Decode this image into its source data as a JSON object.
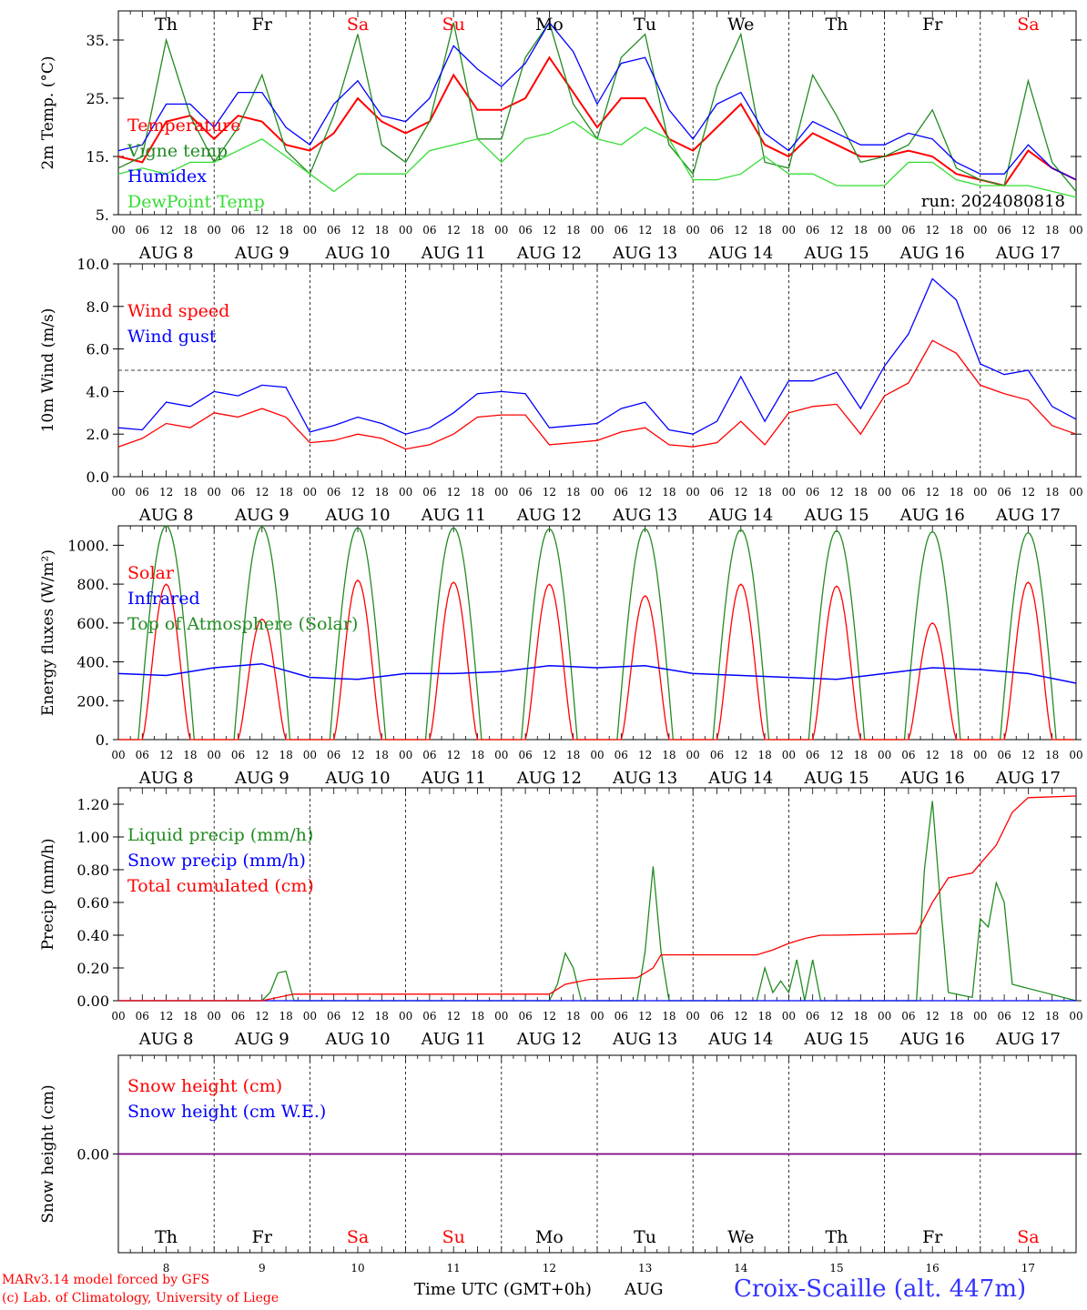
{
  "colors": {
    "red": "#ff0000",
    "green": "#228b22",
    "blue": "#0000ff",
    "light_green": "#33dd33",
    "purple": "#800080",
    "black": "#000000"
  },
  "day_labels": [
    "Th",
    "Fr",
    "Sa",
    "Su",
    "Mo",
    "Tu",
    "We",
    "Th",
    "Fr",
    "Sa"
  ],
  "weekend_days": [
    2,
    3,
    9
  ],
  "date_labels": [
    "AUG  8",
    "AUG  9",
    "AUG 10",
    "AUG 11",
    "AUG 12",
    "AUG 13",
    "AUG 14",
    "AUG 15",
    "AUG 16",
    "AUG 17"
  ],
  "hour_labels": [
    "00",
    "06",
    "12",
    "18"
  ],
  "bottom_day_numbers": [
    "8",
    "9",
    "10",
    "11",
    "12",
    "13",
    "14",
    "15",
    "16",
    "17"
  ],
  "axis_title": "Time UTC (GMT+0h)",
  "axis_month": "AUG",
  "run_label": "run: 2024080818",
  "footer": {
    "model": "MARv3.14 model forced by GFS",
    "copyright": "(c) Lab. of Climatology, University of Liege",
    "station": "Croix-Scaille (alt. 447m)"
  },
  "chart_data": [
    {
      "type": "line",
      "ylabel": "2m Temp. (°C)",
      "ylim": [
        5,
        40
      ],
      "yticks": [
        "5.",
        "15.",
        "25.",
        "35."
      ],
      "x_unit": "hours since AUG 8 00 UTC",
      "xlim": [
        0,
        240
      ],
      "series": [
        {
          "name": "Temperature",
          "color": "#ff0000",
          "x": [
            0,
            6,
            12,
            18,
            24,
            30,
            36,
            42,
            48,
            54,
            60,
            66,
            72,
            78,
            84,
            90,
            96,
            102,
            108,
            114,
            120,
            126,
            132,
            138,
            144,
            150,
            156,
            162,
            168,
            174,
            180,
            186,
            192,
            198,
            204,
            210,
            216,
            222,
            228,
            234,
            240
          ],
          "y": [
            15,
            14,
            21,
            22,
            18,
            22,
            21,
            17,
            16,
            19,
            25,
            21,
            19,
            21,
            29,
            23,
            23,
            25,
            32,
            26,
            20,
            25,
            25,
            18,
            16,
            20,
            24,
            17,
            15,
            19,
            17,
            15,
            15,
            16,
            15,
            12,
            11,
            10,
            16,
            13,
            11
          ]
        },
        {
          "name": "Vigne temp",
          "color": "#228b22",
          "x": [
            0,
            6,
            12,
            18,
            24,
            30,
            36,
            42,
            48,
            54,
            60,
            66,
            72,
            78,
            84,
            90,
            96,
            102,
            108,
            114,
            120,
            126,
            132,
            138,
            144,
            150,
            156,
            162,
            168,
            174,
            180,
            186,
            192,
            198,
            204,
            210,
            216,
            222,
            228,
            234,
            240
          ],
          "y": [
            13,
            15,
            35,
            22,
            14,
            20,
            29,
            16,
            12,
            22,
            36,
            17,
            14,
            21,
            38,
            18,
            18,
            32,
            38,
            24,
            18,
            32,
            36,
            17,
            12,
            27,
            36,
            14,
            13,
            29,
            22,
            14,
            15,
            17,
            23,
            13,
            11,
            10,
            28,
            14,
            9
          ]
        },
        {
          "name": "Humidex",
          "color": "#0000ff",
          "x": [
            0,
            6,
            12,
            18,
            24,
            30,
            36,
            42,
            48,
            54,
            60,
            66,
            72,
            78,
            84,
            90,
            96,
            102,
            108,
            114,
            120,
            126,
            132,
            138,
            144,
            150,
            156,
            162,
            168,
            174,
            180,
            186,
            192,
            198,
            204,
            210,
            216,
            222,
            228,
            234,
            240
          ],
          "y": [
            16,
            17,
            24,
            24,
            20,
            26,
            26,
            20,
            17,
            24,
            28,
            22,
            21,
            25,
            34,
            30,
            27,
            31,
            38,
            33,
            24,
            31,
            32,
            23,
            18,
            24,
            26,
            19,
            16,
            21,
            19,
            17,
            17,
            19,
            18,
            14,
            12,
            12,
            17,
            13,
            11
          ]
        },
        {
          "name": "DewPoint Temp",
          "color": "#33dd33",
          "x": [
            0,
            6,
            12,
            18,
            24,
            30,
            36,
            42,
            48,
            54,
            60,
            66,
            72,
            78,
            84,
            90,
            96,
            102,
            108,
            114,
            120,
            126,
            132,
            138,
            144,
            150,
            156,
            162,
            168,
            174,
            180,
            186,
            192,
            198,
            204,
            210,
            216,
            222,
            228,
            234,
            240
          ],
          "y": [
            12,
            13,
            12,
            14,
            14,
            16,
            18,
            15,
            12,
            9,
            12,
            12,
            12,
            16,
            17,
            18,
            14,
            18,
            19,
            21,
            18,
            17,
            20,
            18,
            11,
            11,
            12,
            15,
            12,
            12,
            10,
            10,
            10,
            14,
            14,
            11,
            10,
            10,
            10,
            9,
            8
          ]
        }
      ]
    },
    {
      "type": "line",
      "ylabel": "10m Wind (m/s)",
      "ylim": [
        0,
        10
      ],
      "yticks": [
        "0.0",
        "2.0",
        "4.0",
        "6.0",
        "8.0",
        "10.0"
      ],
      "reference_line": 5,
      "xlim": [
        0,
        240
      ],
      "series": [
        {
          "name": "Wind speed",
          "color": "#ff0000",
          "x": [
            0,
            6,
            12,
            18,
            24,
            30,
            36,
            42,
            48,
            54,
            60,
            66,
            72,
            78,
            84,
            90,
            96,
            102,
            108,
            114,
            120,
            126,
            132,
            138,
            144,
            150,
            156,
            162,
            168,
            174,
            180,
            186,
            192,
            198,
            204,
            210,
            216,
            222,
            228,
            234,
            240
          ],
          "y": [
            1.4,
            1.8,
            2.5,
            2.3,
            3.0,
            2.8,
            3.2,
            2.8,
            1.6,
            1.7,
            2.0,
            1.8,
            1.3,
            1.5,
            2.0,
            2.8,
            2.9,
            2.9,
            1.5,
            1.6,
            1.7,
            2.1,
            2.3,
            1.5,
            1.4,
            1.6,
            2.6,
            1.5,
            3.0,
            3.3,
            3.4,
            2.0,
            3.8,
            4.4,
            6.4,
            5.8,
            4.3,
            3.9,
            3.6,
            2.4,
            2.0
          ]
        },
        {
          "name": "Wind gust",
          "color": "#0000ff",
          "x": [
            0,
            6,
            12,
            18,
            24,
            30,
            36,
            42,
            48,
            54,
            60,
            66,
            72,
            78,
            84,
            90,
            96,
            102,
            108,
            114,
            120,
            126,
            132,
            138,
            144,
            150,
            156,
            162,
            168,
            174,
            180,
            186,
            192,
            198,
            204,
            210,
            216,
            222,
            228,
            234,
            240
          ],
          "y": [
            2.3,
            2.2,
            3.5,
            3.3,
            4.0,
            3.8,
            4.3,
            4.2,
            2.1,
            2.4,
            2.8,
            2.5,
            2.0,
            2.3,
            3.0,
            3.9,
            4.0,
            3.9,
            2.3,
            2.4,
            2.5,
            3.2,
            3.5,
            2.2,
            2.0,
            2.6,
            4.7,
            2.6,
            4.5,
            4.5,
            4.9,
            3.2,
            5.2,
            6.7,
            9.3,
            8.3,
            5.3,
            4.8,
            5.0,
            3.3,
            2.7
          ]
        }
      ]
    },
    {
      "type": "line",
      "ylabel": "Energy fluxes (W/m²)",
      "ylim": [
        0,
        1100
      ],
      "yticks": [
        "0.",
        "200.",
        "400.",
        "600.",
        "800.",
        "1000."
      ],
      "xlim": [
        0,
        240
      ],
      "toa_peaks": [
        1100,
        1095,
        1090,
        1090,
        1085,
        1085,
        1080,
        1075,
        1070,
        1065
      ],
      "series": [
        {
          "name": "Solar",
          "color": "#ff0000",
          "peaks": [
            800,
            620,
            820,
            810,
            800,
            740,
            800,
            790,
            600,
            810
          ]
        },
        {
          "name": "Infrared",
          "color": "#0000ff",
          "x": [
            0,
            12,
            24,
            36,
            48,
            60,
            72,
            84,
            96,
            108,
            120,
            132,
            144,
            156,
            168,
            180,
            192,
            204,
            216,
            228,
            240
          ],
          "y": [
            340,
            330,
            370,
            390,
            320,
            310,
            340,
            340,
            350,
            380,
            370,
            380,
            340,
            330,
            320,
            310,
            340,
            370,
            360,
            340,
            290
          ]
        },
        {
          "name": "Top of Atmosphere (Solar)",
          "color": "#228b22"
        }
      ]
    },
    {
      "type": "line",
      "ylabel": "Precip (mm/h)",
      "ylim": [
        0,
        1.3
      ],
      "yticks": [
        "0.00",
        "0.20",
        "0.40",
        "0.60",
        "0.80",
        "1.00",
        "1.20"
      ],
      "xlim": [
        0,
        240
      ],
      "series": [
        {
          "name": "Liquid precip (mm/h)",
          "color": "#228b22",
          "x": [
            0,
            36,
            38,
            40,
            42,
            44,
            108,
            110,
            112,
            114,
            116,
            130,
            132,
            134,
            136,
            138,
            160,
            162,
            164,
            166,
            168,
            170,
            172,
            174,
            176,
            178,
            180,
            200,
            202,
            204,
            206,
            208,
            214,
            216,
            218,
            220,
            222,
            224,
            240
          ],
          "y": [
            0,
            0,
            0.05,
            0.17,
            0.18,
            0,
            0,
            0.1,
            0.29,
            0.2,
            0,
            0,
            0.3,
            0.82,
            0.3,
            0,
            0,
            0.2,
            0.05,
            0.12,
            0.05,
            0.25,
            0,
            0.25,
            0,
            0,
            0,
            0,
            0.8,
            1.22,
            0.6,
            0.05,
            0.02,
            0.5,
            0.45,
            0.72,
            0.6,
            0.1,
            0
          ]
        },
        {
          "name": "Snow precip (mm/h)",
          "color": "#0000ff",
          "x": [
            0,
            240
          ],
          "y": [
            0,
            0
          ]
        },
        {
          "name": "Total cumulated (cm)",
          "color": "#ff0000",
          "x": [
            0,
            36,
            44,
            108,
            112,
            118,
            130,
            134,
            136,
            160,
            164,
            168,
            172,
            176,
            180,
            200,
            204,
            208,
            212,
            214,
            220,
            224,
            228,
            240
          ],
          "y": [
            0,
            0,
            0.04,
            0.04,
            0.1,
            0.13,
            0.14,
            0.2,
            0.28,
            0.28,
            0.31,
            0.35,
            0.38,
            0.4,
            0.4,
            0.41,
            0.6,
            0.75,
            0.77,
            0.78,
            0.95,
            1.15,
            1.24,
            1.25
          ]
        }
      ]
    },
    {
      "type": "line",
      "ylabel": "Snow height (cm)",
      "ylim": [
        -1,
        1
      ],
      "yticks": [
        "0.00"
      ],
      "xlim": [
        0,
        240
      ],
      "series": [
        {
          "name": "Snow height (cm)",
          "color": "#ff0000",
          "x": [
            0,
            240
          ],
          "y": [
            0,
            0
          ]
        },
        {
          "name": "Snow height (cm W.E.)",
          "color": "#0000ff",
          "x": [
            0,
            240
          ],
          "y": [
            0,
            0
          ]
        }
      ]
    }
  ]
}
